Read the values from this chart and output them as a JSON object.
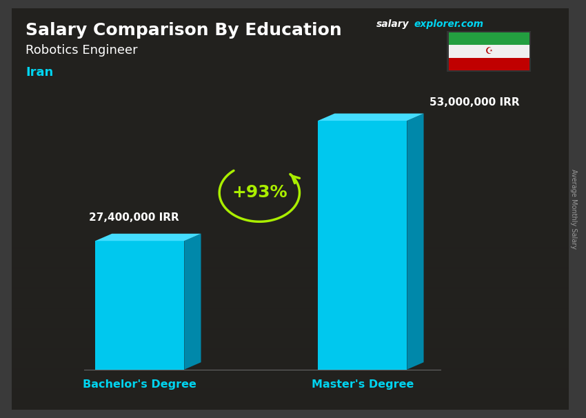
{
  "title": "Salary Comparison By Education",
  "subtitle": "Robotics Engineer",
  "country": "Iran",
  "site_salary": "salary",
  "site_explorer": "explorer.com",
  "site_color": "#00d4f0",
  "site_white": "#ffffff",
  "categories": [
    "Bachelor's Degree",
    "Master's Degree"
  ],
  "values": [
    27400000,
    53000000
  ],
  "value_labels": [
    "27,400,000 IRR",
    "53,000,000 IRR"
  ],
  "pct_change": "+93%",
  "bar_face_color": "#00c8ee",
  "bar_side_color": "#0088aa",
  "bar_top_color": "#44ddff",
  "arrow_color": "#aaee00",
  "text_color_white": "#ffffff",
  "text_color_cyan": "#00d4f0",
  "ylabel_text": "Average Monthly Salary",
  "bg_color": "#3a3a3a",
  "figsize": [
    8.5,
    6.06
  ],
  "dpi": 100
}
